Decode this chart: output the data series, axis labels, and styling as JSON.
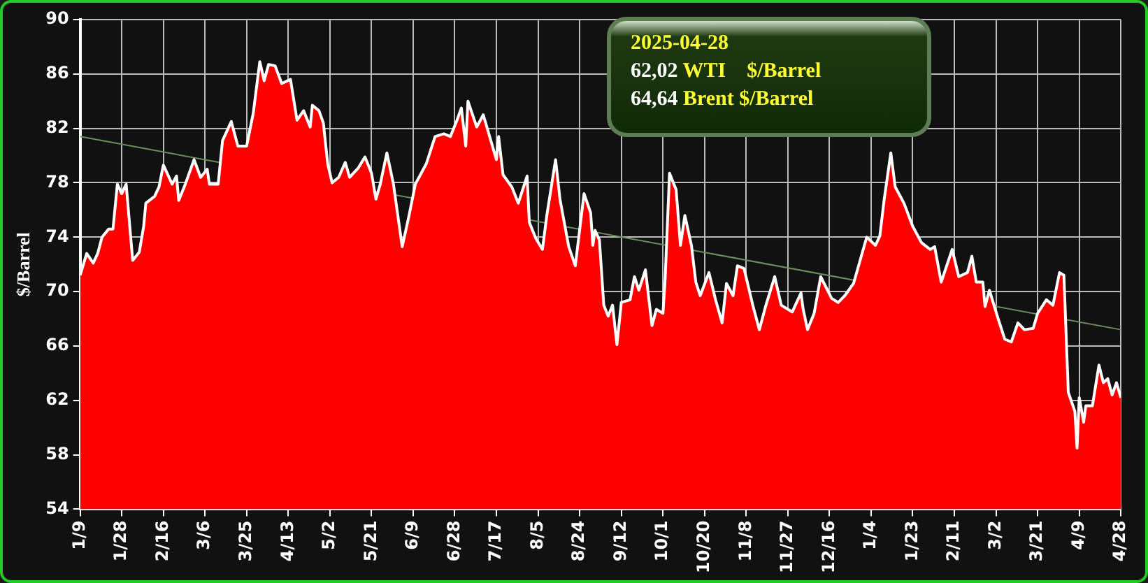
{
  "chart_data": {
    "type": "area",
    "ylabel": "$/Barrel",
    "annotations": [
      "2025-04-28",
      "62,02 WTI    $/Barrel",
      "64,64 Brent $/Barrel"
    ],
    "xlim": [
      "2024-01-09",
      "2025-04-28"
    ],
    "xticks": [
      {
        "value": "2024-01-09",
        "label": "1/9"
      },
      {
        "value": "2024-01-28",
        "label": "1/28"
      },
      {
        "value": "2024-02-16",
        "label": "2/16"
      },
      {
        "value": "2024-03-06",
        "label": "3/6"
      },
      {
        "value": "2024-03-25",
        "label": "3/25"
      },
      {
        "value": "2024-04-13",
        "label": "4/13"
      },
      {
        "value": "2024-05-02",
        "label": "5/2"
      },
      {
        "value": "2024-05-21",
        "label": "5/21"
      },
      {
        "value": "2024-06-09",
        "label": "6/9"
      },
      {
        "value": "2024-06-28",
        "label": "6/28"
      },
      {
        "value": "2024-07-17",
        "label": "7/17"
      },
      {
        "value": "2024-08-05",
        "label": "8/5"
      },
      {
        "value": "2024-08-24",
        "label": "8/24"
      },
      {
        "value": "2024-09-12",
        "label": "9/12"
      },
      {
        "value": "2024-10-01",
        "label": "10/1"
      },
      {
        "value": "2024-10-20",
        "label": "10/20"
      },
      {
        "value": "2024-11-08",
        "label": "11/8"
      },
      {
        "value": "2024-11-27",
        "label": "11/27"
      },
      {
        "value": "2024-12-16",
        "label": "12/16"
      },
      {
        "value": "2025-01-04",
        "label": "1/4"
      },
      {
        "value": "2025-01-23",
        "label": "1/23"
      },
      {
        "value": "2025-02-11",
        "label": "2/11"
      },
      {
        "value": "2025-03-02",
        "label": "3/2"
      },
      {
        "value": "2025-03-21",
        "label": "3/21"
      },
      {
        "value": "2025-04-09",
        "label": "4/9"
      },
      {
        "value": "2025-04-28",
        "label": "4/28"
      }
    ],
    "ylim": [
      54,
      90
    ],
    "yticks": [
      54,
      58,
      62,
      66,
      70,
      74,
      78,
      82,
      86,
      90
    ],
    "grid": true,
    "legend": false,
    "series": [
      {
        "type": "area",
        "color": "#ff0000",
        "x": [
          "2024-01-09",
          "2024-01-12",
          "2024-01-15",
          "2024-01-17",
          "2024-01-19",
          "2024-01-22",
          "2024-01-24",
          "2024-01-26",
          "2024-01-28",
          "2024-01-30",
          "2024-02-02",
          "2024-02-05",
          "2024-02-07",
          "2024-02-08",
          "2024-02-12",
          "2024-02-14",
          "2024-02-16",
          "2024-02-20",
          "2024-02-22",
          "2024-02-23",
          "2024-02-26",
          "2024-03-01",
          "2024-03-04",
          "2024-03-07",
          "2024-03-08",
          "2024-03-12",
          "2024-03-14",
          "2024-03-18",
          "2024-03-21",
          "2024-03-25",
          "2024-03-28",
          "2024-03-31",
          "2024-04-02",
          "2024-04-04",
          "2024-04-07",
          "2024-04-10",
          "2024-04-14",
          "2024-04-17",
          "2024-04-20",
          "2024-04-23",
          "2024-04-24",
          "2024-04-27",
          "2024-04-29",
          "2024-05-01",
          "2024-05-03",
          "2024-05-06",
          "2024-05-09",
          "2024-05-11",
          "2024-05-15",
          "2024-05-18",
          "2024-05-21",
          "2024-05-23",
          "2024-05-25",
          "2024-05-28",
          "2024-05-31",
          "2024-06-04",
          "2024-06-07",
          "2024-06-10",
          "2024-06-15",
          "2024-06-19",
          "2024-06-23",
          "2024-06-26",
          "2024-06-29",
          "2024-07-01",
          "2024-07-03",
          "2024-07-04",
          "2024-07-08",
          "2024-07-11",
          "2024-07-17",
          "2024-07-18",
          "2024-07-20",
          "2024-07-24",
          "2024-07-27",
          "2024-07-31",
          "2024-08-01",
          "2024-08-04",
          "2024-08-07",
          "2024-08-09",
          "2024-08-13",
          "2024-08-15",
          "2024-08-19",
          "2024-08-22",
          "2024-08-26",
          "2024-08-29",
          "2024-08-30",
          "2024-08-31",
          "2024-09-02",
          "2024-09-04",
          "2024-09-06",
          "2024-09-08",
          "2024-09-10",
          "2024-09-12",
          "2024-09-16",
          "2024-09-18",
          "2024-09-20",
          "2024-09-23",
          "2024-09-26",
          "2024-09-28",
          "2024-10-01",
          "2024-10-02",
          "2024-10-04",
          "2024-10-07",
          "2024-10-09",
          "2024-10-11",
          "2024-10-14",
          "2024-10-16",
          "2024-10-18",
          "2024-10-22",
          "2024-10-25",
          "2024-10-28",
          "2024-10-30",
          "2024-11-02",
          "2024-11-04",
          "2024-11-07",
          "2024-11-11",
          "2024-11-14",
          "2024-11-17",
          "2024-11-21",
          "2024-11-24",
          "2024-11-29",
          "2024-12-03",
          "2024-12-04",
          "2024-12-06",
          "2024-12-09",
          "2024-12-12",
          "2024-12-17",
          "2024-12-20",
          "2024-12-23",
          "2024-12-27",
          "2025-01-02",
          "2025-01-06",
          "2025-01-08",
          "2025-01-10",
          "2025-01-13",
          "2025-01-15",
          "2025-01-19",
          "2025-01-23",
          "2025-01-27",
          "2025-01-31",
          "2025-02-02",
          "2025-02-05",
          "2025-02-10",
          "2025-02-13",
          "2025-02-17",
          "2025-02-19",
          "2025-02-21",
          "2025-02-24",
          "2025-02-25",
          "2025-02-27",
          "2025-03-03",
          "2025-03-06",
          "2025-03-09",
          "2025-03-12",
          "2025-03-15",
          "2025-03-19",
          "2025-03-21",
          "2025-03-25",
          "2025-03-28",
          "2025-03-31",
          "2025-04-02",
          "2025-04-04",
          "2025-04-07",
          "2025-04-08",
          "2025-04-09",
          "2025-04-11",
          "2025-04-12",
          "2025-04-15",
          "2025-04-18",
          "2025-04-20",
          "2025-04-22",
          "2025-04-24",
          "2025-04-26",
          "2025-04-28"
        ],
        "values": [
          71.2,
          72.8,
          72.1,
          72.8,
          74.0,
          74.6,
          74.6,
          77.9,
          77.2,
          77.9,
          72.3,
          72.9,
          74.8,
          76.5,
          77.0,
          77.7,
          79.3,
          77.9,
          78.5,
          76.7,
          77.9,
          79.7,
          78.4,
          79.0,
          77.9,
          77.9,
          81.1,
          82.5,
          80.7,
          80.7,
          83.1,
          86.9,
          85.5,
          86.7,
          86.6,
          85.3,
          85.6,
          82.6,
          83.3,
          82.1,
          83.7,
          83.3,
          82.4,
          79.4,
          78.0,
          78.4,
          79.5,
          78.4,
          79.1,
          79.9,
          78.7,
          76.8,
          77.9,
          80.2,
          77.9,
          73.3,
          75.5,
          77.9,
          79.4,
          81.4,
          81.6,
          81.4,
          82.6,
          83.5,
          80.7,
          84.0,
          82.1,
          83.0,
          79.7,
          81.4,
          78.6,
          77.7,
          76.5,
          78.5,
          75.1,
          73.9,
          73.1,
          75.6,
          79.7,
          76.8,
          73.3,
          71.9,
          77.2,
          75.8,
          73.4,
          74.5,
          73.8,
          69.0,
          68.2,
          69.0,
          66.1,
          69.2,
          69.4,
          71.1,
          70.1,
          71.6,
          67.5,
          68.7,
          68.4,
          70.9,
          78.7,
          77.5,
          73.4,
          75.6,
          73.4,
          70.7,
          69.7,
          71.4,
          69.4,
          67.7,
          70.6,
          69.7,
          71.9,
          71.7,
          69.0,
          67.2,
          69.0,
          71.1,
          69.0,
          68.5,
          69.9,
          68.7,
          67.2,
          68.4,
          71.1,
          69.5,
          69.2,
          69.7,
          70.6,
          74.0,
          73.4,
          74.1,
          76.8,
          80.2,
          77.7,
          76.5,
          74.8,
          73.6,
          73.1,
          73.3,
          70.7,
          73.1,
          71.1,
          71.4,
          72.6,
          70.7,
          70.7,
          68.9,
          70.1,
          68.0,
          66.5,
          66.3,
          67.7,
          67.2,
          67.3,
          68.4,
          69.4,
          69.0,
          71.4,
          71.2,
          62.6,
          61.2,
          58.5,
          62.2,
          60.4,
          61.6,
          61.6,
          64.6,
          63.3,
          63.6,
          62.4,
          63.3,
          62.2
        ]
      },
      {
        "type": "line",
        "color": "#6b8f5e",
        "x": [
          "2024-01-09",
          "2025-04-28"
        ],
        "values": [
          81.4,
          67.2
        ]
      }
    ]
  }
}
